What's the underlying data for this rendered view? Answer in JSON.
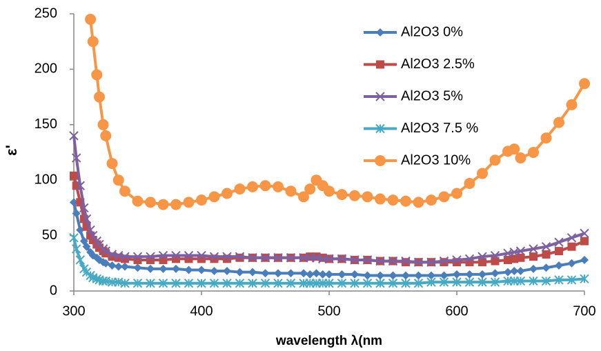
{
  "chart_data": {
    "type": "line",
    "xlabel": "wavelength λ(nm",
    "ylabel": "ε'",
    "x": [
      300,
      302,
      305,
      308,
      310,
      313,
      315,
      318,
      320,
      323,
      325,
      330,
      335,
      340,
      350,
      360,
      370,
      380,
      390,
      400,
      410,
      420,
      430,
      440,
      450,
      460,
      470,
      480,
      485,
      490,
      495,
      500,
      510,
      520,
      530,
      540,
      550,
      560,
      570,
      580,
      590,
      600,
      610,
      620,
      630,
      640,
      645,
      650,
      660,
      670,
      680,
      690,
      700
    ],
    "series": [
      {
        "name": "Al2O3 0%",
        "color": "#4a7ebb",
        "marker": "diamond",
        "values": [
          80,
          70,
          55,
          45,
          40,
          35,
          32,
          30,
          28,
          26,
          25,
          23,
          22,
          22,
          21,
          20,
          20,
          20,
          19,
          19,
          18,
          18,
          17,
          17,
          16,
          16,
          16,
          16,
          15,
          16,
          15,
          15,
          15,
          15,
          14,
          14,
          14,
          14,
          14,
          14,
          14,
          15,
          15,
          15,
          16,
          17,
          18,
          18,
          20,
          21,
          23,
          25,
          28
        ]
      },
      {
        "name": "Al2O3 2.5%",
        "color": "#be4b48",
        "marker": "square",
        "values": [
          104,
          95,
          80,
          65,
          58,
          50,
          46,
          42,
          39,
          36,
          34,
          31,
          30,
          29,
          28,
          28,
          28,
          29,
          29,
          29,
          29,
          29,
          30,
          30,
          30,
          30,
          30,
          30,
          31,
          31,
          30,
          29,
          29,
          28,
          28,
          27,
          27,
          26,
          26,
          26,
          26,
          26,
          26,
          26,
          27,
          28,
          29,
          30,
          31,
          33,
          36,
          40,
          45
        ]
      },
      {
        "name": "Al2O3 5%",
        "color": "#7d60a0",
        "marker": "x",
        "values": [
          140,
          120,
          95,
          75,
          65,
          55,
          50,
          45,
          42,
          38,
          36,
          33,
          32,
          31,
          31,
          31,
          32,
          32,
          32,
          32,
          31,
          31,
          31,
          30,
          30,
          30,
          30,
          30,
          30,
          30,
          29,
          29,
          29,
          28,
          28,
          27,
          27,
          27,
          26,
          26,
          27,
          28,
          29,
          31,
          32,
          34,
          35,
          36,
          38,
          40,
          44,
          48,
          52
        ]
      },
      {
        "name": "Al2O3 7.5 %",
        "color": "#46aac4",
        "marker": "star",
        "values": [
          48,
          38,
          28,
          20,
          17,
          14,
          12,
          11,
          10,
          9,
          9,
          8,
          8,
          7,
          7,
          7,
          7,
          7,
          7,
          7,
          7,
          7,
          7,
          7,
          7,
          7,
          7,
          7,
          7,
          7,
          7,
          7,
          7,
          7,
          7,
          7,
          7,
          7,
          7,
          8,
          8,
          8,
          8,
          8,
          8,
          9,
          9,
          9,
          9,
          9,
          10,
          10,
          11
        ]
      },
      {
        "name": "Al2O3 10%",
        "color": "#f79646",
        "marker": "circle",
        "values": [
          null,
          null,
          null,
          null,
          null,
          245,
          225,
          195,
          175,
          150,
          140,
          115,
          100,
          90,
          81,
          80,
          78,
          78,
          80,
          82,
          85,
          88,
          92,
          94,
          95,
          94,
          90,
          85,
          92,
          100,
          95,
          90,
          87,
          86,
          85,
          83,
          82,
          81,
          80,
          82,
          85,
          88,
          97,
          106,
          118,
          126,
          128,
          120,
          125,
          138,
          152,
          168,
          187
        ]
      }
    ],
    "xlim": [
      300,
      700
    ],
    "xticks": [
      300,
      400,
      500,
      600,
      700
    ],
    "ylim": [
      0,
      250
    ],
    "yticks": [
      0,
      50,
      100,
      150,
      200,
      250
    ],
    "grid": false,
    "legend": "top-right"
  }
}
